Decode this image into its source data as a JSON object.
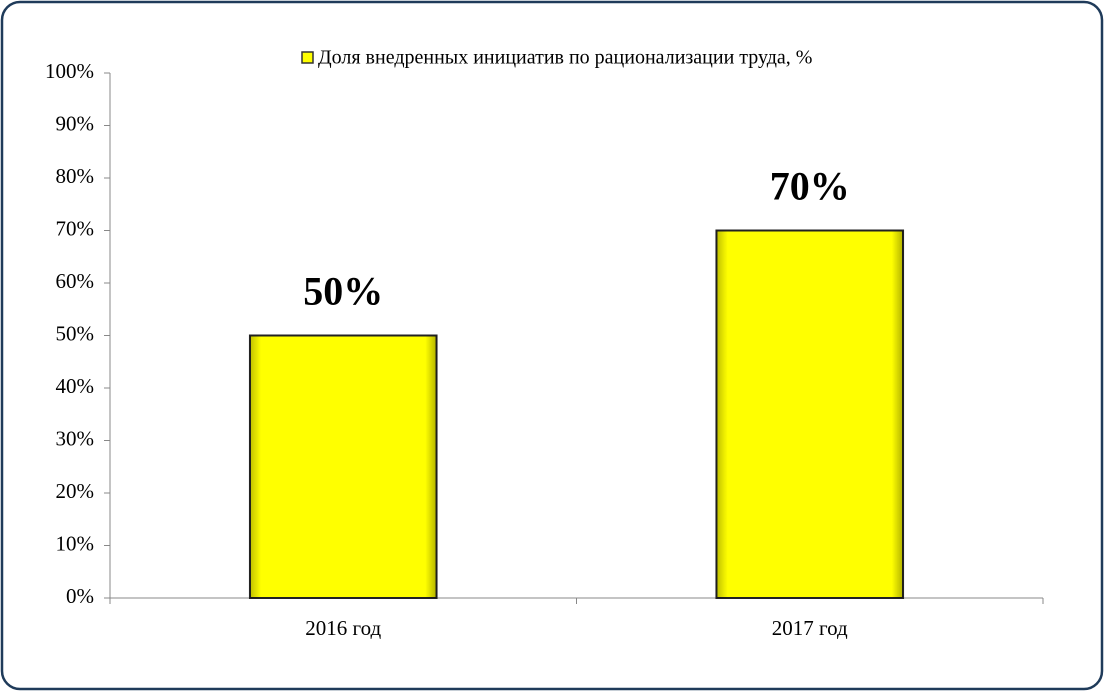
{
  "chart_data": {
    "type": "bar",
    "categories": [
      "2016 год",
      "2017 год"
    ],
    "series": [
      {
        "name": "Доля внедренных инициатив  по рационализации труда, %",
        "color": "#ffff00",
        "values": [
          50,
          70
        ],
        "value_labels": [
          "50%",
          "70%"
        ]
      }
    ],
    "ylim": [
      0,
      100
    ],
    "yticks": [
      {
        "value": 0,
        "label": "0%"
      },
      {
        "value": 10,
        "label": "10%"
      },
      {
        "value": 20,
        "label": "20%"
      },
      {
        "value": 30,
        "label": "30%"
      },
      {
        "value": 40,
        "label": "40%"
      },
      {
        "value": 50,
        "label": "50%"
      },
      {
        "value": 60,
        "label": "60%"
      },
      {
        "value": 70,
        "label": "70%"
      },
      {
        "value": 80,
        "label": "80%"
      },
      {
        "value": 90,
        "label": "90%"
      },
      {
        "value": 100,
        "label": "100%"
      }
    ],
    "grid": false,
    "legend": "top"
  }
}
